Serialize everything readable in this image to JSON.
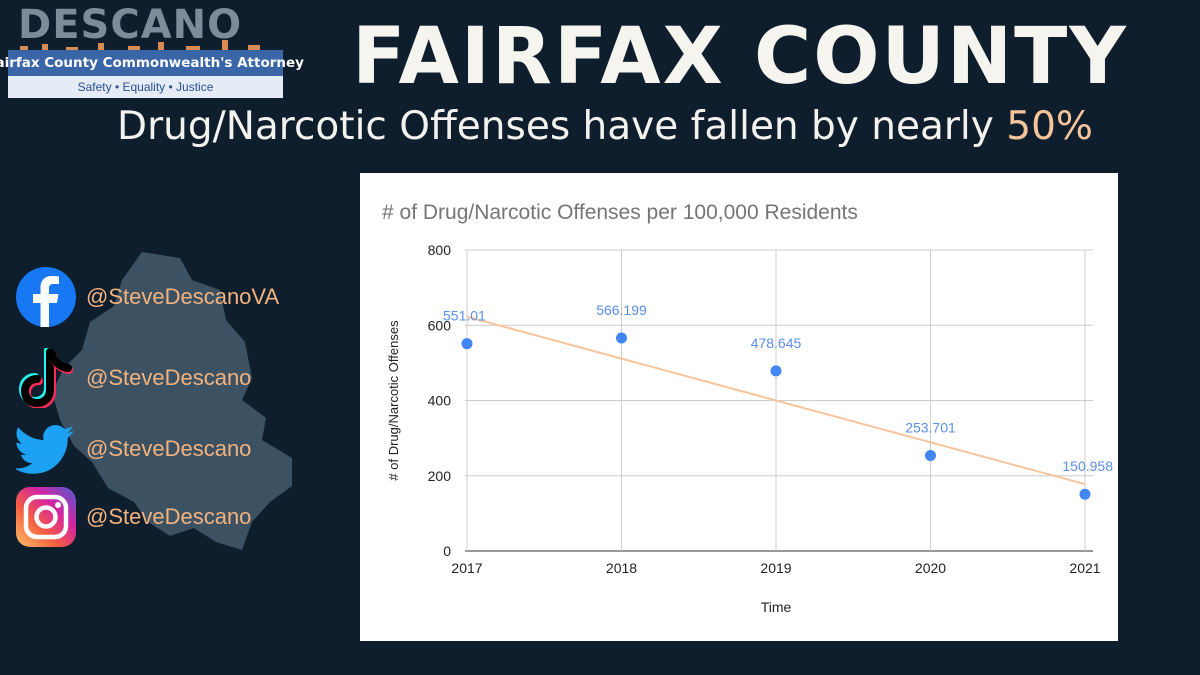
{
  "logo": {
    "word": "DESCANO",
    "banner": "Fairfax County Commonwealth's Attorney",
    "tagline": "Safety • Equality • Justice"
  },
  "header": {
    "title": "FAIRFAX COUNTY",
    "subtitle_prefix": "Drug/Narcotic Offenses have fallen by nearly ",
    "subtitle_highlight": "50%"
  },
  "social": [
    {
      "icon": "facebook-icon",
      "handle": "@SteveDescanoVA"
    },
    {
      "icon": "tiktok-icon",
      "handle": "@SteveDescano"
    },
    {
      "icon": "twitter-icon",
      "handle": "@SteveDescano"
    },
    {
      "icon": "instagram-icon",
      "handle": "@SteveDescano"
    }
  ],
  "colors": {
    "background": "#0e1e2d",
    "accent": "#f3b27e",
    "point": "#4285f4",
    "trendline": "#f8c49c"
  },
  "chart_data": {
    "type": "scatter",
    "title": "# of Drug/Narcotic Offenses per 100,000 Residents",
    "xlabel": "Time",
    "ylabel": "# of Drug/Narcotic Offenses",
    "x": [
      "2017",
      "2018",
      "2019",
      "2020",
      "2021"
    ],
    "values": [
      551.01,
      566.199,
      478.645,
      253.701,
      150.958
    ],
    "value_labels": [
      "551.01",
      "566.199",
      "478.645",
      "253.701",
      "150.958"
    ],
    "ylim": [
      0,
      800
    ],
    "yticks": [
      "0",
      "200",
      "400",
      "600",
      "800"
    ],
    "trendline": "linear",
    "grid": true,
    "legend": "none"
  }
}
